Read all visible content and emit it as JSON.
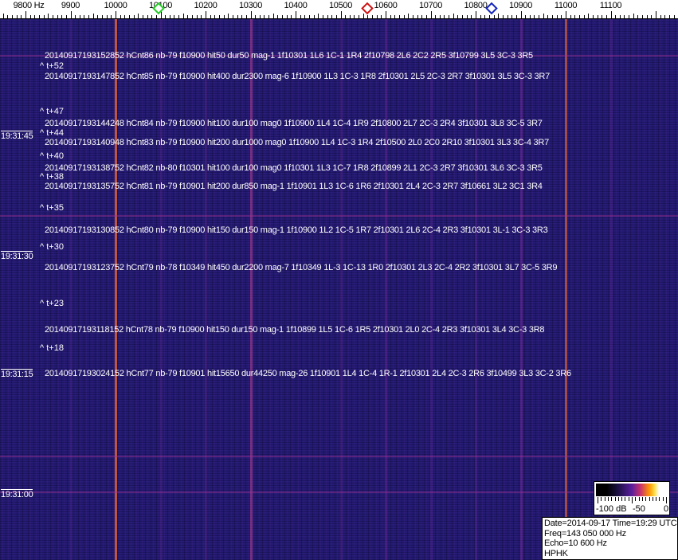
{
  "axis": {
    "unit_label": "9800 Hz",
    "labels": [
      "9900",
      "10000",
      "10100",
      "10200",
      "10300",
      "10400",
      "10500",
      "10600",
      "10700",
      "10800",
      "10900",
      "11000",
      "11100"
    ]
  },
  "markers": [
    {
      "name": "green",
      "color": "#22cc22",
      "freq": 10095
    },
    {
      "name": "red",
      "color": "#cc1111",
      "freq": 10560
    },
    {
      "name": "blue",
      "color": "#1122bb",
      "freq": 10835
    }
  ],
  "colors": {
    "background": "#231a72",
    "strong_line": "#d8603a",
    "weak_line": "#8a2a9a"
  },
  "events": [
    "20140917193152852 hCnt86 nb-79 f10900 hit50 dur50 mag-1 1f10301 1L6 1C-1 1R4 2f10798 2L6 2C2 2R5 3f10799 3L5 3C-3 3R5",
    "20140917193147852 hCnt85 nb-79 f10900 hit400 dur2300 mag-6 1f10900 1L3 1C-3 1R8 2f10301 2L5 2C-3 2R7 3f10301 3L5 3C-3 3R7",
    "20140917193144248 hCnt84 nb-79 f10900 hit100 dur100 mag0 1f10900 1L4 1C-4 1R9 2f10800 2L7 2C-3 2R4 3f10301 3L8 3C-5 3R7",
    "20140917193140948 hCnt83 nb-79 f10900 hit200 dur1000 mag0 1f10900 1L4 1C-3 1R4 2f10500 2L0 2C0 2R10 3f10301 3L3 3C-4 3R7",
    "20140917193138752 hCnt82 nb-80 f10301 hit100 dur100 mag0 1f10301 1L3 1C-7 1R8 2f10899 2L1 2C-3 2R7 3f10301 3L6 3C-3 3R5",
    "20140917193135752 hCnt81 nb-79 f10901 hit200 dur850 mag-1 1f10901 1L3 1C-6 1R6 2f10301 2L4 2C-3 2R7 3f10661 3L2 3C1 3R4",
    "20140917193130852 hCnt80 nb-79 f10900 hit150 dur150 mag-1 1f10900 1L2 1C-5 1R7 2f10301 2L6 2C-4 2R3 3f10301 3L-1 3C-3 3R3",
    "20140917193123752 hCnt79 nb-78 f10349 hit450 dur2200 mag-7 1f10349 1L-3 1C-13 1R0 2f10301 2L3 2C-4 2R2 3f10301 3L7 3C-5 3R9",
    "20140917193118152 hCnt78 nb-79 f10900 hit150 dur150 mag-1 1f10899 1L5 1C-6 1R5 2f10301 2L0 2C-4 2R3 3f10301 3L4 3C-3 3R8",
    "20140917193024152 hCnt77 nb-79 f10901 hit15650 dur44250 mag-26 1f10901 1L4 1C-4 1R-1 2f10301 2L4 2C-3 2R6 3f10499 3L3 3C-2 3R6"
  ],
  "offsets": [
    "^ t+52",
    "^ t+47",
    "^ t+44",
    "^ t+40",
    "^ t+38",
    "^ t+35",
    "^ t+30",
    "^ t+23",
    "^ t+18"
  ],
  "times": [
    "19:31:45",
    "19:31:30",
    "19:31:15",
    "19:31:00"
  ],
  "scale": {
    "labels": [
      "-100 dB",
      "-50",
      "0"
    ]
  },
  "info": {
    "date": "Date=2014-09-17 Time=19:29 UTC",
    "freq": "Freq=143 050 000 Hz",
    "echo": "Echo=10 600 Hz",
    "station": "HPHK"
  }
}
